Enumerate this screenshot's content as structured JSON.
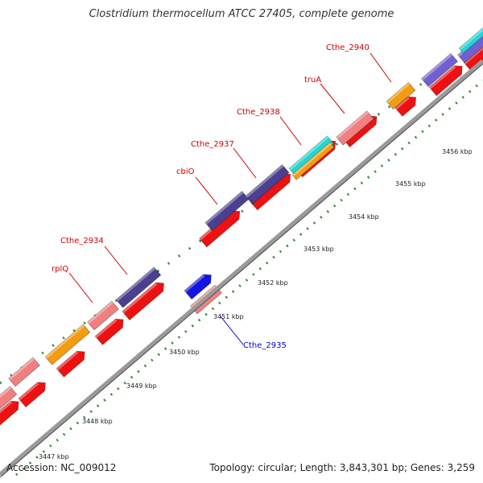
{
  "title": "Clostridium thermocellum ATCC 27405, complete genome",
  "accession": "Accession: NC_009012",
  "summary": "Topology: circular; Length: 3,843,301 bp; Genes: 3,259",
  "colors": {
    "backbone": "#9a9a9a",
    "tick": "#2e8b2e",
    "label_red": "#cc0000",
    "label_blue": "#0000cc",
    "cds_red": "#ee1111",
    "cds_pink": "#f08080",
    "cds_orange": "#f39c12",
    "cds_darkpurple": "#4b3f8f",
    "cds_purple": "#7060d0",
    "cds_cyan": "#20d6d6",
    "cds_blue": "#1515e0"
  },
  "scale_labels": [
    "3447 kbp",
    "3448 kbp",
    "3449 kbp",
    "3450 kbp",
    "3451 kbp",
    "3452 kbp",
    "3453 kbp",
    "3454 kbp",
    "3455 kbp",
    "3456 kbp"
  ],
  "gene_labels": [
    {
      "name": "Cthe_2940",
      "color": "label_red"
    },
    {
      "name": "truA",
      "color": "label_red"
    },
    {
      "name": "Cthe_2938",
      "color": "label_red"
    },
    {
      "name": "Cthe_2937",
      "color": "label_red"
    },
    {
      "name": "cbiO",
      "color": "label_red"
    },
    {
      "name": "Cthe_2934",
      "color": "label_red"
    },
    {
      "name": "rplQ",
      "color": "label_red"
    },
    {
      "name": "Cthe_2935",
      "color": "label_blue"
    }
  ]
}
